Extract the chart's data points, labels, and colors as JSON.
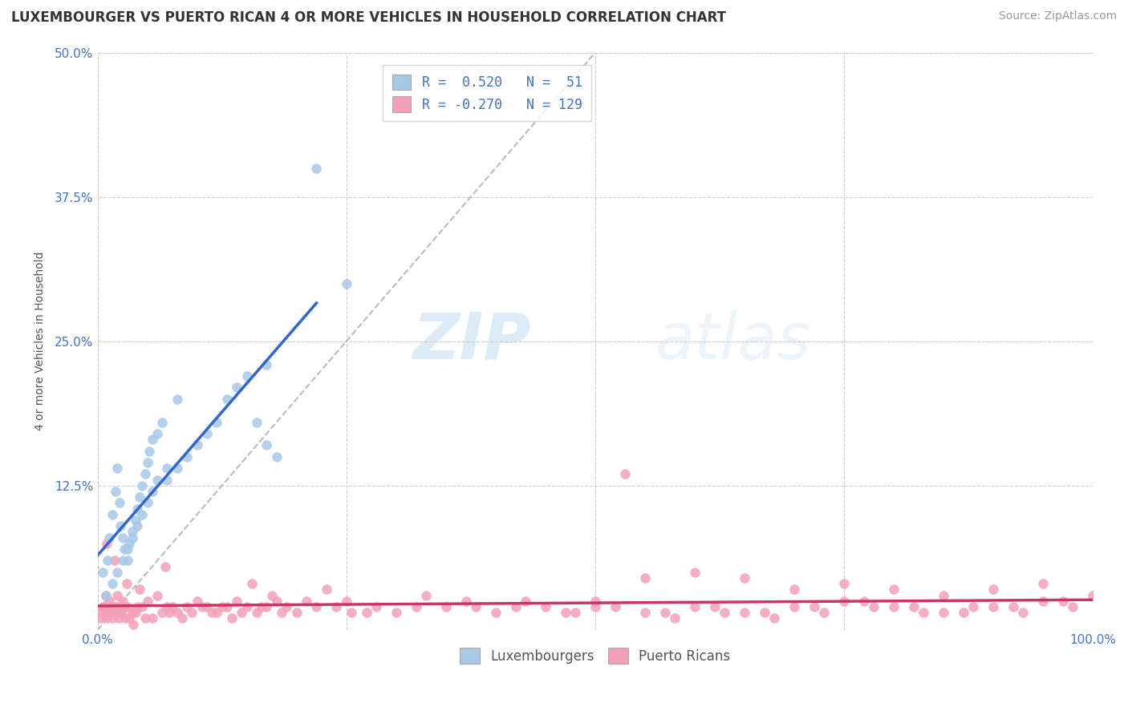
{
  "title": "LUXEMBOURGER VS PUERTO RICAN 4 OR MORE VEHICLES IN HOUSEHOLD CORRELATION CHART",
  "source": "Source: ZipAtlas.com",
  "ylabel": "4 or more Vehicles in Household",
  "xlim": [
    0,
    100
  ],
  "ylim": [
    0,
    50
  ],
  "xticks": [
    0,
    25,
    50,
    75,
    100
  ],
  "xticklabels": [
    "0.0%",
    "",
    "",
    "",
    "100.0%"
  ],
  "yticks": [
    0,
    12.5,
    25.0,
    37.5,
    50.0
  ],
  "yticklabels": [
    "",
    "12.5%",
    "25.0%",
    "37.5%",
    "50.0%"
  ],
  "grid_color": "#cccccc",
  "background_color": "#ffffff",
  "blue_color": "#a8c8e8",
  "pink_color": "#f4a0b8",
  "blue_line_color": "#3366cc",
  "pink_line_color": "#cc3366",
  "diag_line_color": "#aaaaaa",
  "R_blue": 0.52,
  "N_blue": 51,
  "R_pink": -0.27,
  "N_pink": 129,
  "legend_labels": [
    "Luxembourgers",
    "Puerto Ricans"
  ],
  "watermark_zip": "ZIP",
  "watermark_atlas": "atlas",
  "title_fontsize": 12,
  "axis_label_fontsize": 10,
  "tick_fontsize": 11,
  "source_fontsize": 10,
  "blue_scatter_x": [
    0.5,
    1.0,
    1.2,
    1.5,
    1.8,
    2.0,
    2.2,
    2.3,
    2.5,
    2.7,
    3.0,
    3.2,
    3.5,
    3.8,
    4.0,
    4.2,
    4.5,
    4.8,
    5.0,
    5.2,
    5.5,
    6.0,
    6.5,
    7.0,
    8.0,
    9.0,
    10.0,
    11.0,
    12.0,
    13.0,
    14.0,
    15.0,
    16.0,
    17.0,
    18.0,
    0.8,
    1.5,
    2.0,
    2.5,
    3.0,
    3.5,
    4.0,
    4.5,
    5.0,
    5.5,
    6.0,
    7.0,
    8.0,
    17.0,
    22.0,
    25.0
  ],
  "blue_scatter_y": [
    5.0,
    6.0,
    8.0,
    10.0,
    12.0,
    14.0,
    11.0,
    9.0,
    8.0,
    7.0,
    6.0,
    7.5,
    8.5,
    9.5,
    10.5,
    11.5,
    12.5,
    13.5,
    14.5,
    15.5,
    16.5,
    17.0,
    18.0,
    13.0,
    14.0,
    15.0,
    16.0,
    17.0,
    18.0,
    20.0,
    21.0,
    22.0,
    18.0,
    16.0,
    15.0,
    3.0,
    4.0,
    5.0,
    6.0,
    7.0,
    8.0,
    9.0,
    10.0,
    11.0,
    12.0,
    13.0,
    14.0,
    20.0,
    23.0,
    40.0,
    30.0
  ],
  "pink_scatter_x": [
    0.5,
    0.8,
    1.0,
    1.2,
    1.5,
    1.8,
    2.0,
    2.2,
    2.5,
    2.8,
    3.0,
    3.5,
    4.0,
    5.0,
    6.0,
    7.0,
    8.0,
    9.0,
    10.0,
    11.0,
    12.0,
    13.0,
    14.0,
    15.0,
    16.0,
    17.0,
    18.0,
    19.0,
    20.0,
    22.0,
    25.0,
    28.0,
    30.0,
    35.0,
    40.0,
    45.0,
    50.0,
    55.0,
    60.0,
    65.0,
    70.0,
    75.0,
    80.0,
    85.0,
    90.0,
    95.0,
    100.0,
    0.3,
    0.4,
    0.6,
    0.9,
    1.1,
    1.3,
    1.6,
    1.9,
    2.1,
    2.4,
    2.7,
    3.2,
    3.8,
    4.5,
    5.5,
    6.5,
    7.5,
    8.5,
    9.5,
    10.5,
    11.5,
    12.5,
    14.5,
    16.5,
    18.5,
    21.0,
    24.0,
    27.0,
    32.0,
    37.0,
    42.0,
    47.0,
    52.0,
    57.0,
    62.0,
    67.0,
    72.0,
    77.0,
    82.0,
    87.0,
    92.0,
    97.0,
    0.7,
    1.4,
    2.6,
    3.6,
    4.8,
    7.2,
    13.5,
    25.5,
    38.0,
    48.0,
    58.0,
    63.0,
    68.0,
    73.0,
    78.0,
    83.0,
    88.0,
    93.0,
    98.0,
    53.0,
    43.0,
    33.0,
    23.0,
    17.5,
    15.5,
    6.8,
    4.2,
    2.9,
    1.7,
    0.9,
    85.0,
    90.0,
    95.0,
    70.0,
    75.0,
    80.0,
    55.0,
    60.0,
    65.0,
    50.0
  ],
  "pink_scatter_y": [
    2.0,
    3.0,
    1.5,
    2.5,
    1.0,
    2.0,
    3.0,
    1.5,
    2.5,
    1.0,
    2.0,
    1.5,
    2.0,
    2.5,
    3.0,
    2.0,
    1.5,
    2.0,
    2.5,
    2.0,
    1.5,
    2.0,
    2.5,
    2.0,
    1.5,
    2.0,
    2.5,
    2.0,
    1.5,
    2.0,
    2.5,
    2.0,
    1.5,
    2.0,
    1.5,
    2.0,
    2.5,
    1.5,
    2.0,
    1.5,
    2.0,
    2.5,
    2.0,
    1.5,
    2.0,
    2.5,
    3.0,
    1.0,
    1.5,
    2.0,
    1.0,
    1.5,
    2.0,
    1.5,
    2.0,
    1.0,
    1.5,
    2.0,
    1.0,
    1.5,
    2.0,
    1.0,
    1.5,
    2.0,
    1.0,
    1.5,
    2.0,
    1.5,
    2.0,
    1.5,
    2.0,
    1.5,
    2.5,
    2.0,
    1.5,
    2.0,
    2.5,
    2.0,
    1.5,
    2.0,
    1.5,
    2.0,
    1.5,
    2.0,
    2.5,
    2.0,
    1.5,
    2.0,
    2.5,
    2.0,
    1.5,
    2.0,
    0.5,
    1.0,
    1.5,
    1.0,
    1.5,
    2.0,
    1.5,
    1.0,
    1.5,
    1.0,
    1.5,
    2.0,
    1.5,
    2.0,
    1.5,
    2.0,
    13.5,
    2.5,
    3.0,
    3.5,
    3.0,
    4.0,
    5.5,
    3.5,
    4.0,
    6.0,
    7.5,
    3.0,
    3.5,
    4.0,
    3.5,
    4.0,
    3.5,
    4.5,
    5.0,
    4.5,
    2.0
  ]
}
